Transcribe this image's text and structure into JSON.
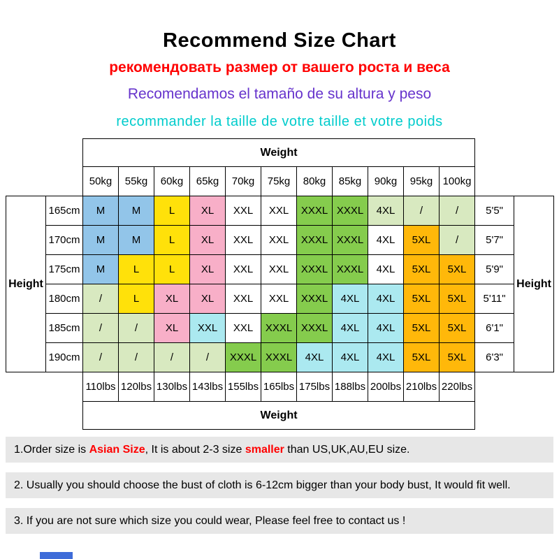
{
  "header": {
    "title": "Recommend Size Chart",
    "subtitle_ru": "рекомендовать размер от вашего роста и веса",
    "subtitle_es": "Recomendamos el tamaño de su altura y peso",
    "subtitle_fr": "recommander la taille de votre taille et votre poids"
  },
  "chart_data": {
    "type": "table",
    "weight_header": "Weight",
    "height_header": "Height",
    "weights_kg": [
      "50kg",
      "55kg",
      "60kg",
      "65kg",
      "70kg",
      "75kg",
      "80kg",
      "85kg",
      "90kg",
      "95kg",
      "100kg"
    ],
    "weights_lbs": [
      "110lbs",
      "120lbs",
      "130lbs",
      "143lbs",
      "155lbs",
      "165lbs",
      "175lbs",
      "188lbs",
      "200lbs",
      "210lbs",
      "220lbs"
    ],
    "heights_cm": [
      "165cm",
      "170cm",
      "175cm",
      "180cm",
      "185cm",
      "190cm"
    ],
    "heights_ft": [
      "5'5\"",
      "5'7\"",
      "5'9\"",
      "5'11\"",
      "6'1\"",
      "6'3\""
    ],
    "rows": [
      [
        [
          "M",
          "blue"
        ],
        [
          "M",
          "blue"
        ],
        [
          "L",
          "yellow"
        ],
        [
          "XL",
          "pink"
        ],
        [
          "XXL",
          "white"
        ],
        [
          "XXL",
          "white"
        ],
        [
          "XXXL",
          "green"
        ],
        [
          "XXXL",
          "green"
        ],
        [
          "4XL",
          "palegreen"
        ],
        [
          "/",
          "palegreen"
        ],
        [
          "/",
          "palegreen"
        ]
      ],
      [
        [
          "M",
          "blue"
        ],
        [
          "M",
          "blue"
        ],
        [
          "L",
          "yellow"
        ],
        [
          "XL",
          "pink"
        ],
        [
          "XXL",
          "white"
        ],
        [
          "XXL",
          "white"
        ],
        [
          "XXXL",
          "green"
        ],
        [
          "XXXL",
          "green"
        ],
        [
          "4XL",
          "white"
        ],
        [
          "5XL",
          "orange"
        ],
        [
          "/",
          "palegreen"
        ]
      ],
      [
        [
          "M",
          "blue"
        ],
        [
          "L",
          "yellow"
        ],
        [
          "L",
          "yellow"
        ],
        [
          "XL",
          "pink"
        ],
        [
          "XXL",
          "white"
        ],
        [
          "XXL",
          "white"
        ],
        [
          "XXXL",
          "green"
        ],
        [
          "XXXL",
          "green"
        ],
        [
          "4XL",
          "white"
        ],
        [
          "5XL",
          "orange"
        ],
        [
          "5XL",
          "orange"
        ]
      ],
      [
        [
          "/",
          "palegreen"
        ],
        [
          "L",
          "yellow"
        ],
        [
          "XL",
          "pink"
        ],
        [
          "XL",
          "pink"
        ],
        [
          "XXL",
          "white"
        ],
        [
          "XXL",
          "white"
        ],
        [
          "XXXL",
          "green"
        ],
        [
          "4XL",
          "cyan"
        ],
        [
          "4XL",
          "cyan"
        ],
        [
          "5XL",
          "orange"
        ],
        [
          "5XL",
          "orange"
        ]
      ],
      [
        [
          "/",
          "palegreen"
        ],
        [
          "/",
          "palegreen"
        ],
        [
          "XL",
          "pink"
        ],
        [
          "XXL",
          "cyan"
        ],
        [
          "XXL",
          "white"
        ],
        [
          "XXXL",
          "green"
        ],
        [
          "XXXL",
          "green"
        ],
        [
          "4XL",
          "cyan"
        ],
        [
          "4XL",
          "cyan"
        ],
        [
          "5XL",
          "orange"
        ],
        [
          "5XL",
          "orange"
        ]
      ],
      [
        [
          "/",
          "palegreen"
        ],
        [
          "/",
          "palegreen"
        ],
        [
          "/",
          "palegreen"
        ],
        [
          "/",
          "palegreen"
        ],
        [
          "XXXL",
          "green"
        ],
        [
          "XXXL",
          "green"
        ],
        [
          "4XL",
          "cyan"
        ],
        [
          "4XL",
          "cyan"
        ],
        [
          "4XL",
          "cyan"
        ],
        [
          "5XL",
          "orange"
        ],
        [
          "5XL",
          "orange"
        ]
      ]
    ],
    "palette": {
      "blue": "#92C5E9",
      "yellow": "#FFE10A",
      "pink": "#F8AFC8",
      "white": "#FFFFFF",
      "green": "#85CC4D",
      "cyan": "#ABE9F0",
      "orange": "#FFB80A",
      "palegreen": "#D8E9C0"
    }
  },
  "notes": {
    "note1_segments": [
      {
        "text": "1.Order size is ",
        "red": false
      },
      {
        "text": "Asian Size",
        "red": true
      },
      {
        "text": ", It is about 2-3 size ",
        "red": false
      },
      {
        "text": "smaller",
        "red": true
      },
      {
        "text": " than US,UK,AU,EU size.",
        "red": false
      }
    ],
    "note2": "2. Usually you should choose the bust of cloth is 6-12cm bigger than your body bust, It would fit well.",
    "note3": "3. If you are not sure which size you could wear, Please feel free to contact us !"
  },
  "colors": {
    "title_black": "#000000",
    "subtitle_ru_red": "#FF0000",
    "subtitle_es_purple": "#6633CC",
    "subtitle_fr_teal": "#00CCCC",
    "note_background": "#E7E7E7",
    "bottom_strip_blue": "#3E6CD9",
    "table_border": "#000000"
  }
}
